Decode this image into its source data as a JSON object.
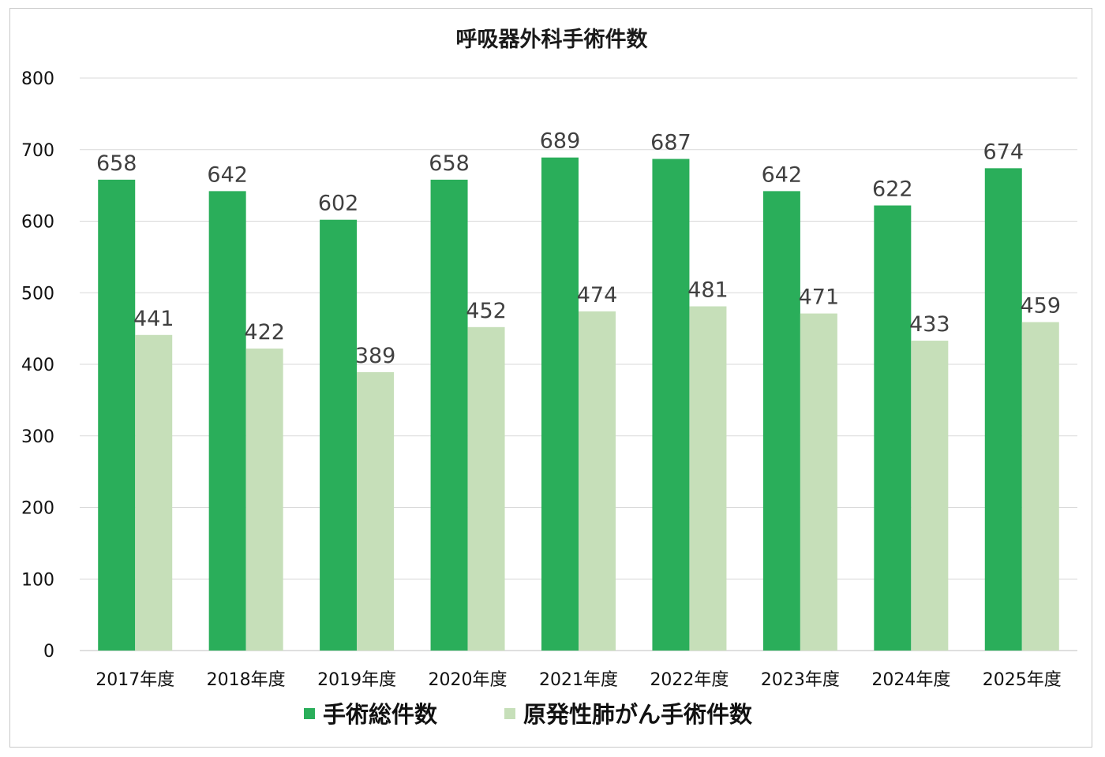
{
  "chart_data": {
    "type": "bar",
    "title": "呼吸器外科手術件数",
    "xlabel": "",
    "ylabel": "",
    "categories": [
      "2017年度",
      "2018年度",
      "2019年度",
      "2020年度",
      "2021年度",
      "2022年度",
      "2023年度",
      "2024年度",
      "2025年度"
    ],
    "series": [
      {
        "name": "手術総件数",
        "color": "#2aae5a",
        "values": [
          658,
          642,
          602,
          658,
          689,
          687,
          642,
          622,
          674
        ]
      },
      {
        "name": "原発性肺がん手術件数",
        "color": "#c6dfb9",
        "values": [
          441,
          422,
          389,
          452,
          474,
          481,
          471,
          433,
          459
        ]
      }
    ],
    "ylim": [
      0,
      800
    ],
    "yticks": [
      "0",
      "100",
      "200",
      "300",
      "400",
      "500",
      "600",
      "700",
      "800"
    ],
    "grid": true,
    "legend": "bottom"
  }
}
